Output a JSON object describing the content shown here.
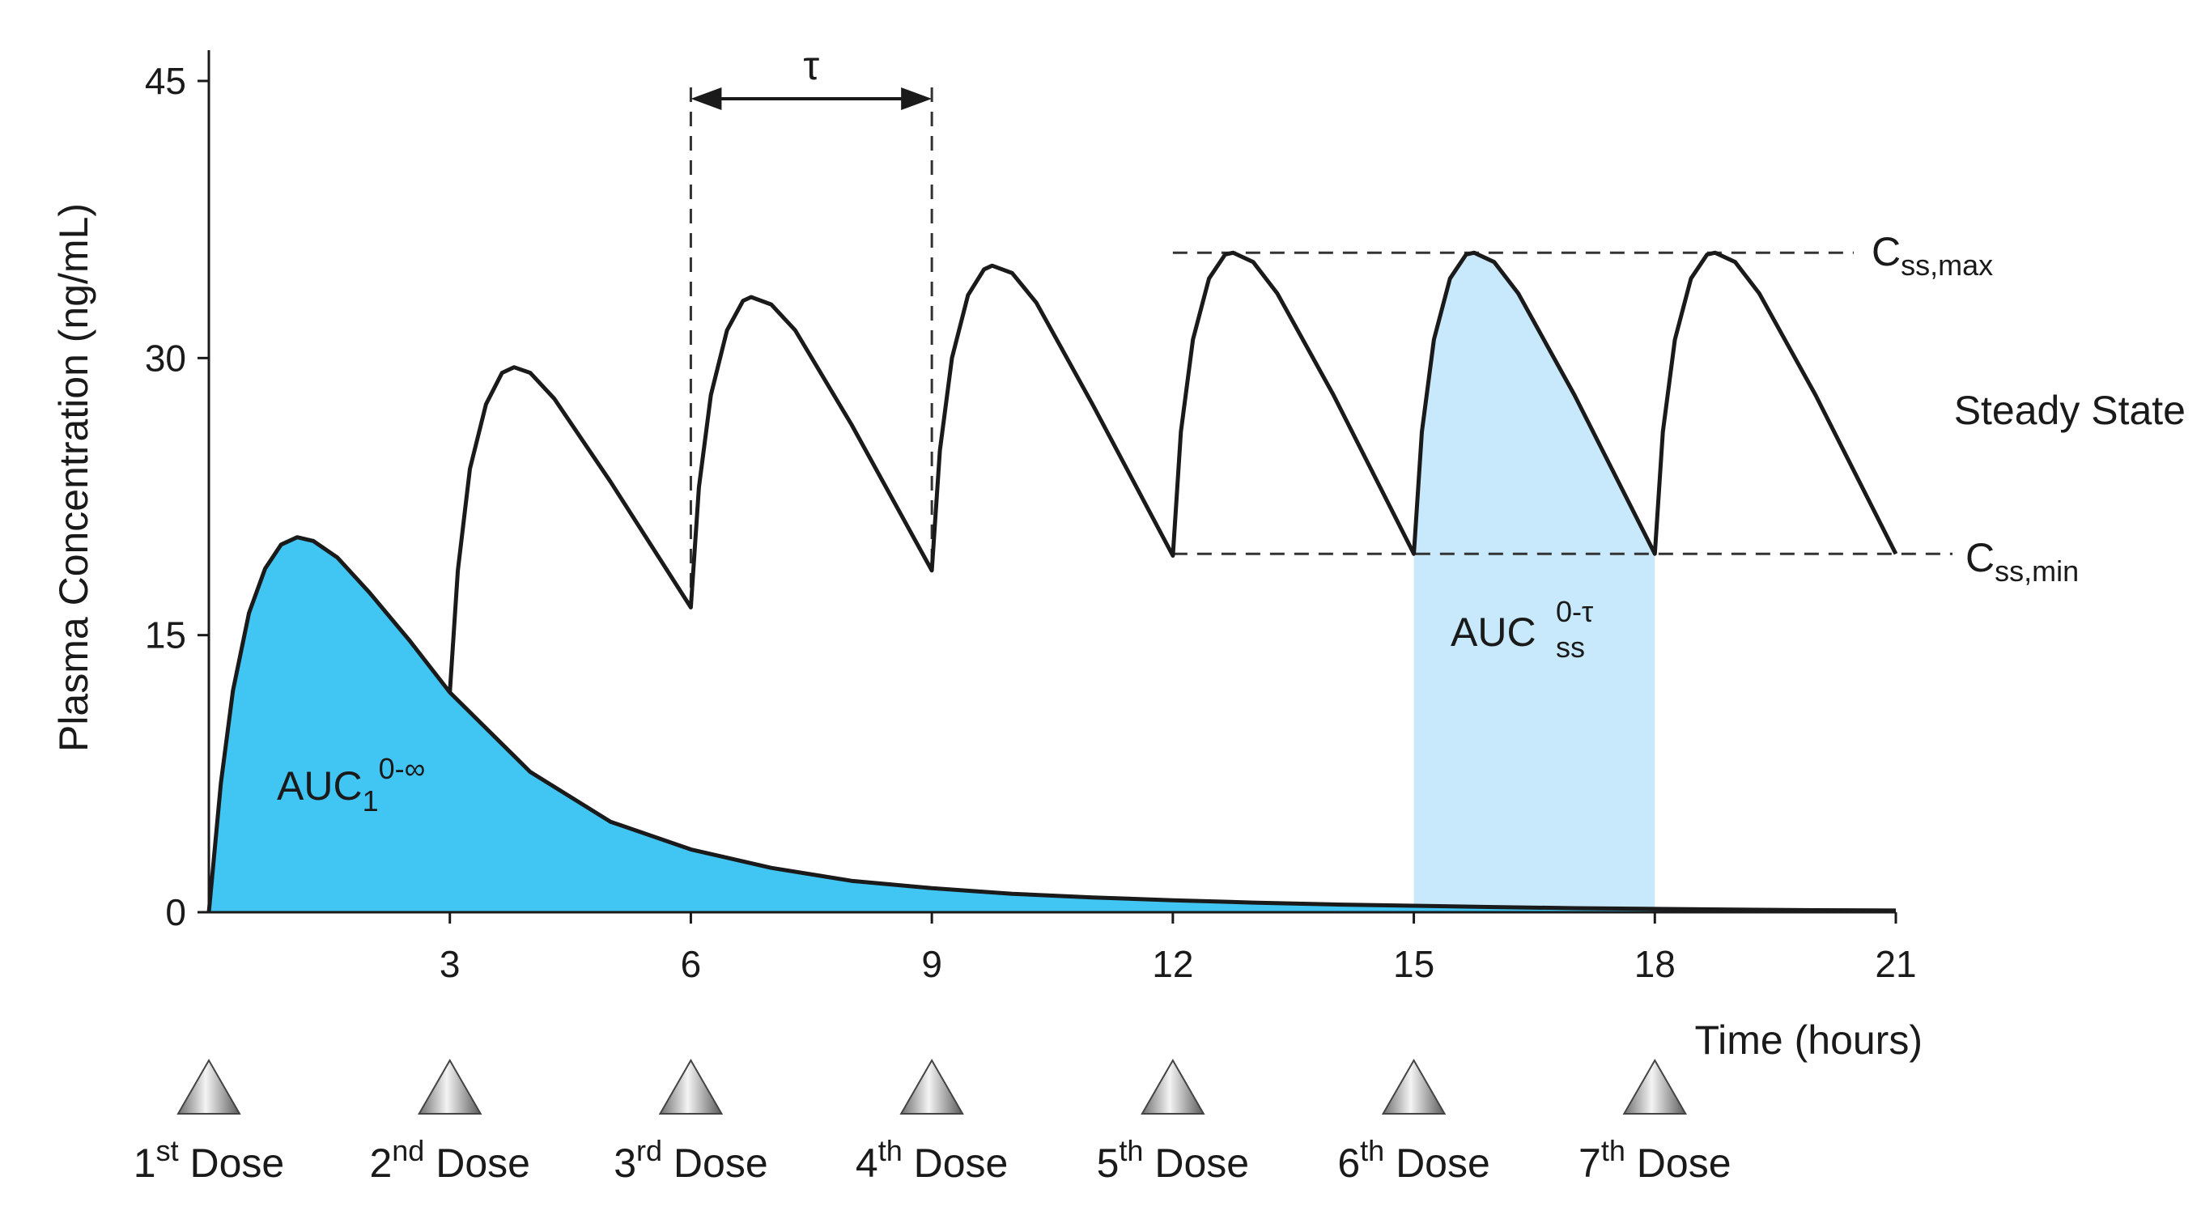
{
  "chart_data": {
    "type": "line",
    "title": "",
    "xlabel": "Time (hours)",
    "ylabel": "Plasma Concentration (ng/mL)",
    "xlim": [
      0,
      21
    ],
    "ylim": [
      0,
      45
    ],
    "xticks": [
      3,
      6,
      9,
      12,
      15,
      18,
      21
    ],
    "yticks": [
      0,
      15,
      30,
      45
    ],
    "grid": false,
    "series": [
      {
        "values": [
          {
            "x": 0,
            "y": 0
          },
          {
            "x": 0.15,
            "y": 7.0
          },
          {
            "x": 0.3,
            "y": 12.0
          },
          {
            "x": 0.5,
            "y": 16.2
          },
          {
            "x": 0.7,
            "y": 18.6
          },
          {
            "x": 0.9,
            "y": 19.9
          },
          {
            "x": 1.1,
            "y": 20.3
          },
          {
            "x": 1.3,
            "y": 20.1
          },
          {
            "x": 1.6,
            "y": 19.2
          },
          {
            "x": 2.0,
            "y": 17.3
          },
          {
            "x": 2.5,
            "y": 14.7
          },
          {
            "x": 3.0,
            "y": 11.9
          },
          {
            "x": 3.1,
            "y": 18.5
          },
          {
            "x": 3.25,
            "y": 24.0
          },
          {
            "x": 3.45,
            "y": 27.5
          },
          {
            "x": 3.65,
            "y": 29.2
          },
          {
            "x": 3.8,
            "y": 29.5
          },
          {
            "x": 4.0,
            "y": 29.2
          },
          {
            "x": 4.3,
            "y": 27.8
          },
          {
            "x": 5.0,
            "y": 23.3
          },
          {
            "x": 6.0,
            "y": 16.5
          },
          {
            "x": 6.1,
            "y": 23.0
          },
          {
            "x": 6.25,
            "y": 28.0
          },
          {
            "x": 6.45,
            "y": 31.5
          },
          {
            "x": 6.65,
            "y": 33.1
          },
          {
            "x": 6.75,
            "y": 33.3
          },
          {
            "x": 7.0,
            "y": 32.9
          },
          {
            "x": 7.3,
            "y": 31.5
          },
          {
            "x": 8.0,
            "y": 26.4
          },
          {
            "x": 9.0,
            "y": 18.5
          },
          {
            "x": 9.1,
            "y": 25.0
          },
          {
            "x": 9.25,
            "y": 30.0
          },
          {
            "x": 9.45,
            "y": 33.4
          },
          {
            "x": 9.65,
            "y": 34.8
          },
          {
            "x": 9.75,
            "y": 35.0
          },
          {
            "x": 10.0,
            "y": 34.6
          },
          {
            "x": 10.3,
            "y": 33.0
          },
          {
            "x": 11.0,
            "y": 27.5
          },
          {
            "x": 12.0,
            "y": 19.3
          },
          {
            "x": 12.1,
            "y": 26.0
          },
          {
            "x": 12.25,
            "y": 31.0
          },
          {
            "x": 12.45,
            "y": 34.3
          },
          {
            "x": 12.65,
            "y": 35.6
          },
          {
            "x": 12.75,
            "y": 35.7
          },
          {
            "x": 13.0,
            "y": 35.2
          },
          {
            "x": 13.3,
            "y": 33.5
          },
          {
            "x": 14.0,
            "y": 28.0
          },
          {
            "x": 15.0,
            "y": 19.4
          },
          {
            "x": 15.1,
            "y": 26.0
          },
          {
            "x": 15.25,
            "y": 31.0
          },
          {
            "x": 15.45,
            "y": 34.3
          },
          {
            "x": 15.65,
            "y": 35.6
          },
          {
            "x": 15.75,
            "y": 35.7
          },
          {
            "x": 16.0,
            "y": 35.2
          },
          {
            "x": 16.3,
            "y": 33.5
          },
          {
            "x": 17.0,
            "y": 28.0
          },
          {
            "x": 18.0,
            "y": 19.4
          },
          {
            "x": 18.1,
            "y": 26.0
          },
          {
            "x": 18.25,
            "y": 31.0
          },
          {
            "x": 18.45,
            "y": 34.3
          },
          {
            "x": 18.65,
            "y": 35.6
          },
          {
            "x": 18.75,
            "y": 35.7
          },
          {
            "x": 19.0,
            "y": 35.2
          },
          {
            "x": 19.3,
            "y": 33.5
          },
          {
            "x": 20.0,
            "y": 28.0
          },
          {
            "x": 21.0,
            "y": 19.4
          }
        ]
      },
      {
        "values": [
          {
            "x": 0,
            "y": 0
          },
          {
            "x": 0.15,
            "y": 7.0
          },
          {
            "x": 0.3,
            "y": 12.0
          },
          {
            "x": 0.5,
            "y": 16.2
          },
          {
            "x": 0.7,
            "y": 18.6
          },
          {
            "x": 0.9,
            "y": 19.9
          },
          {
            "x": 1.1,
            "y": 20.3
          },
          {
            "x": 1.3,
            "y": 20.1
          },
          {
            "x": 1.6,
            "y": 19.2
          },
          {
            "x": 2.0,
            "y": 17.3
          },
          {
            "x": 2.5,
            "y": 14.7
          },
          {
            "x": 3.0,
            "y": 11.9
          },
          {
            "x": 4.0,
            "y": 7.6
          },
          {
            "x": 5.0,
            "y": 4.9
          },
          {
            "x": 6.0,
            "y": 3.4
          },
          {
            "x": 7.0,
            "y": 2.4
          },
          {
            "x": 8.0,
            "y": 1.7
          },
          {
            "x": 9.0,
            "y": 1.3
          },
          {
            "x": 10.0,
            "y": 1.0
          },
          {
            "x": 11.0,
            "y": 0.8
          },
          {
            "x": 12.0,
            "y": 0.65
          },
          {
            "x": 13.0,
            "y": 0.52
          },
          {
            "x": 14.0,
            "y": 0.42
          },
          {
            "x": 15.0,
            "y": 0.35
          },
          {
            "x": 16.0,
            "y": 0.28
          },
          {
            "x": 17.0,
            "y": 0.22
          },
          {
            "x": 18.0,
            "y": 0.18
          },
          {
            "x": 19.0,
            "y": 0.14
          },
          {
            "x": 20.0,
            "y": 0.11
          },
          {
            "x": 21.0,
            "y": 0.09
          }
        ]
      }
    ],
    "colors": {
      "auc1_fill": "#41c5f3",
      "aucss_fill": "#c8e9fb",
      "line": "#1a1a1a"
    },
    "shaded_regions": {
      "auc1": {
        "label": "AUC",
        "sub": "1",
        "sup": "0-∞"
      },
      "aucss": {
        "label": "AUC",
        "sub": "ss",
        "sup": "0-τ",
        "x_start": 15,
        "x_end": 18
      }
    },
    "reference_lines": {
      "css_max": {
        "y": 35.7,
        "x_start": 12,
        "label": "C",
        "sub": "ss,max"
      },
      "css_min": {
        "y": 19.4,
        "x_start": 12,
        "label": "C",
        "sub": "ss,min"
      }
    },
    "tau_interval": {
      "x_start": 6,
      "x_end": 9,
      "label": "τ"
    },
    "steady_state_label": "Steady State",
    "doses": [
      {
        "x": 0,
        "num": "1",
        "suffix": "st",
        "word": "Dose"
      },
      {
        "x": 3,
        "num": "2",
        "suffix": "nd",
        "word": "Dose"
      },
      {
        "x": 6,
        "num": "3",
        "suffix": "rd",
        "word": "Dose"
      },
      {
        "x": 9,
        "num": "4",
        "suffix": "th",
        "word": "Dose"
      },
      {
        "x": 12,
        "num": "5",
        "suffix": "th",
        "word": "Dose"
      },
      {
        "x": 15,
        "num": "6",
        "suffix": "th",
        "word": "Dose"
      },
      {
        "x": 18,
        "num": "7",
        "suffix": "th",
        "word": "Dose"
      }
    ]
  }
}
